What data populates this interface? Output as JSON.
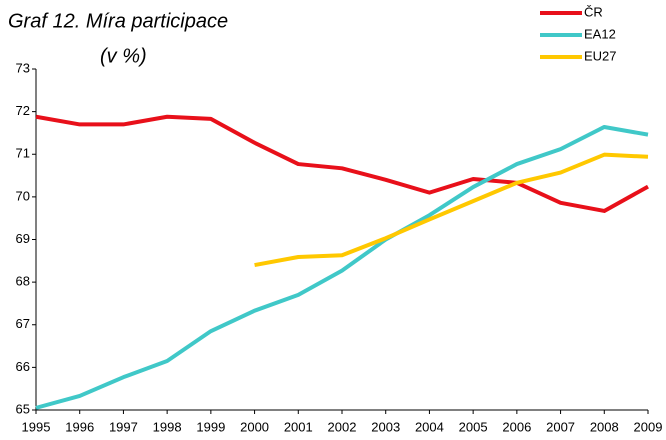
{
  "chart_data": {
    "type": "line",
    "title": "Graf 12. Míra participace",
    "subtitle": "(v %)",
    "categories": [
      "1995",
      "1996",
      "1997",
      "1998",
      "1999",
      "2000",
      "2001",
      "2002",
      "2003",
      "2004",
      "2005",
      "2006",
      "2007",
      "2008",
      "2009"
    ],
    "series": [
      {
        "name": "ČR",
        "color": "#e8101a",
        "values": [
          71.88,
          71.7,
          71.7,
          71.88,
          71.83,
          71.27,
          70.77,
          70.67,
          70.4,
          70.1,
          70.42,
          70.33,
          69.86,
          69.67,
          70.24
        ]
      },
      {
        "name": "EA12",
        "color": "#40c8c8",
        "values": [
          65.05,
          65.33,
          65.77,
          66.15,
          66.85,
          67.33,
          67.7,
          68.27,
          69.0,
          69.57,
          70.23,
          70.77,
          71.12,
          71.64,
          71.46
        ]
      },
      {
        "name": "EU27",
        "color": "#ffc800",
        "values": [
          null,
          null,
          null,
          null,
          null,
          68.4,
          68.59,
          68.63,
          69.03,
          69.47,
          69.9,
          70.33,
          70.57,
          70.99,
          70.94
        ]
      }
    ],
    "ylim": [
      65,
      73
    ],
    "yticks": [
      65,
      66,
      67,
      68,
      69,
      70,
      71,
      72,
      73
    ],
    "grid": false,
    "legend": "top-right"
  }
}
